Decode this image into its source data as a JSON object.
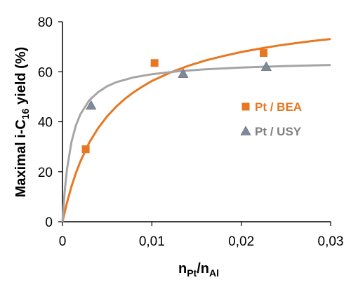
{
  "chart_data": {
    "type": "scatter",
    "xlabel": {
      "base": "n",
      "sub1": "Pt",
      "sep": "/n",
      "sub2": "Al"
    },
    "ylabel": {
      "pre": "Maximal i-C",
      "sub": "16",
      "post": " yield (%)"
    },
    "xlim": [
      0,
      0.03
    ],
    "ylim": [
      0,
      80
    ],
    "x_ticks": [
      0,
      0.01,
      0.02,
      0.03
    ],
    "x_tick_labels": [
      "0",
      "0,01",
      "0,02",
      "0,03"
    ],
    "y_ticks": [
      0,
      20,
      40,
      60,
      80
    ],
    "y_tick_labels": [
      "0",
      "20",
      "40",
      "60",
      "80"
    ],
    "grid": false,
    "legend_position": "right",
    "series": [
      {
        "name": "Pt / BEA",
        "marker": "square",
        "color": "#E87722",
        "points": [
          [
            0.0026,
            29
          ],
          [
            0.0103,
            63.5
          ],
          [
            0.0225,
            67.5
          ]
        ],
        "fit_curve": [
          [
            0,
            0
          ],
          [
            0.0005,
            7.6
          ],
          [
            0.001,
            14
          ],
          [
            0.0015,
            19.5
          ],
          [
            0.002,
            24.1
          ],
          [
            0.003,
            31.7
          ],
          [
            0.004,
            37.5
          ],
          [
            0.005,
            42.2
          ],
          [
            0.006,
            46
          ],
          [
            0.007,
            49.2
          ],
          [
            0.008,
            51.9
          ],
          [
            0.009,
            54.2
          ],
          [
            0.01,
            56.3
          ],
          [
            0.012,
            59.6
          ],
          [
            0.014,
            62.3
          ],
          [
            0.016,
            64.5
          ],
          [
            0.018,
            66.3
          ],
          [
            0.02,
            67.9
          ],
          [
            0.022,
            69.2
          ],
          [
            0.024,
            70.4
          ],
          [
            0.026,
            71.4
          ],
          [
            0.028,
            72.3
          ],
          [
            0.03,
            73.1
          ]
        ]
      },
      {
        "name": "Pt / USY",
        "marker": "triangle",
        "color": "#7E8A9A",
        "points": [
          [
            0.0032,
            46.5
          ],
          [
            0.0135,
            59.2
          ],
          [
            0.0228,
            62
          ]
        ],
        "fit_curve": [
          [
            0,
            0
          ],
          [
            0.00025,
            12.3
          ],
          [
            0.0005,
            20.9
          ],
          [
            0.001,
            31.8
          ],
          [
            0.0015,
            38.5
          ],
          [
            0.002,
            43
          ],
          [
            0.003,
            48.6
          ],
          [
            0.004,
            51.9
          ],
          [
            0.005,
            54.2
          ],
          [
            0.006,
            55.8
          ],
          [
            0.008,
            57.8
          ],
          [
            0.01,
            59
          ],
          [
            0.013,
            60.2
          ],
          [
            0.016,
            61
          ],
          [
            0.02,
            61.7
          ],
          [
            0.025,
            62.3
          ],
          [
            0.03,
            62.7
          ]
        ]
      }
    ],
    "fit_line_color": {
      "Pt / BEA": "#E87722",
      "Pt / USY": "#A5A5A5"
    }
  }
}
